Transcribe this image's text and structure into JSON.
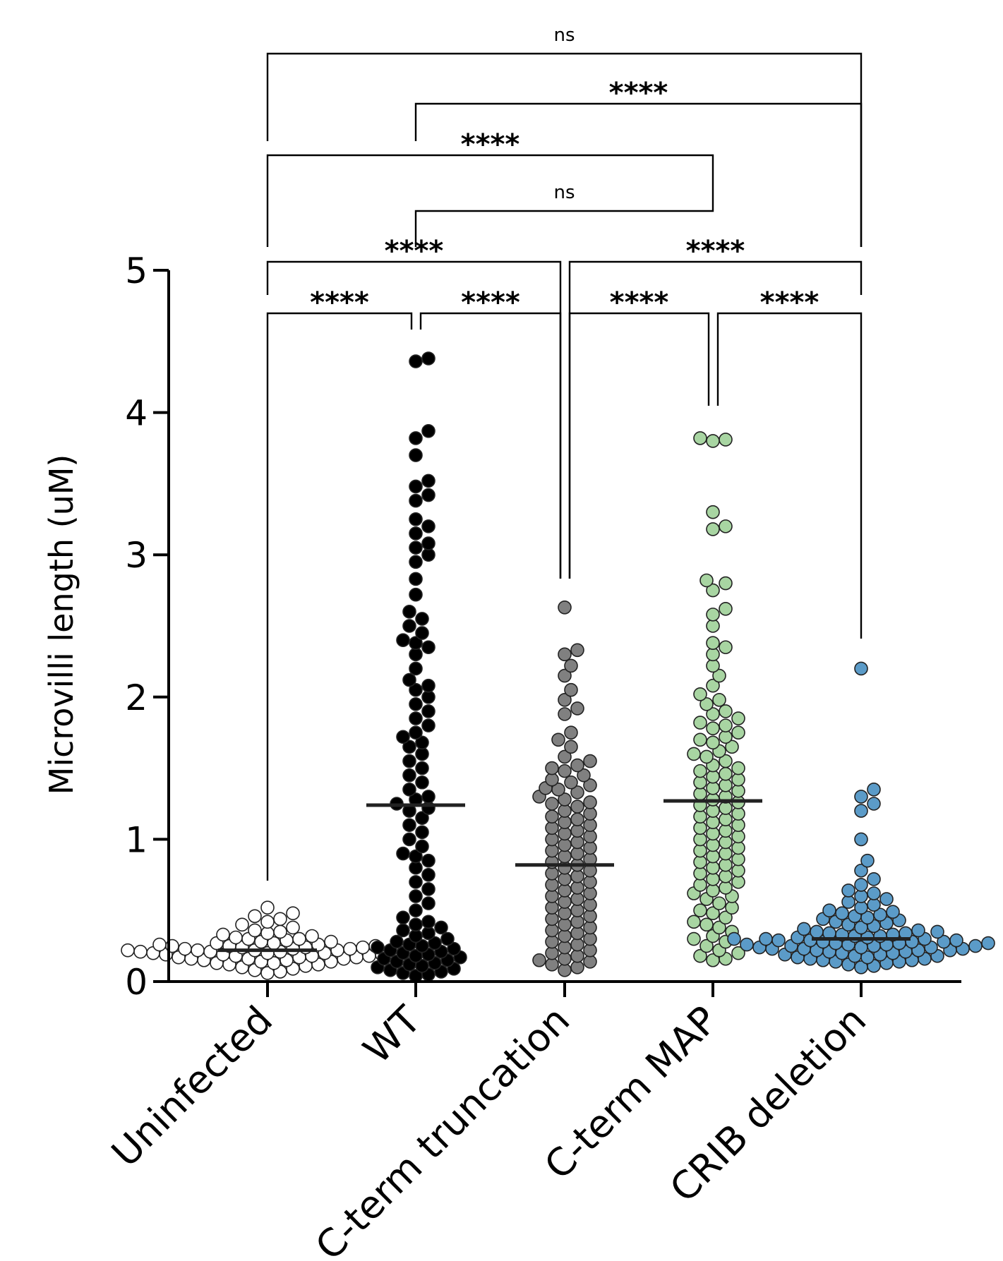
{
  "chart_data": {
    "type": "scatter",
    "subtype": "dot-plot-with-median",
    "title": "",
    "xlabel": "",
    "ylabel": "Microvilli length (uM)",
    "ylim": [
      0,
      5
    ],
    "yticks": [
      0,
      1,
      2,
      3,
      4,
      5
    ],
    "grid": false,
    "legend": "none",
    "categories": [
      "Uninfected",
      "WT",
      "C-term truncation",
      "C-term MAP",
      "CRIB deletion"
    ],
    "series": [
      {
        "category": "Uninfected",
        "color": "#ffffff",
        "median": 0.22,
        "values": [
          0.52,
          0.48,
          0.46,
          0.44,
          0.42,
          0.4,
          0.38,
          0.36,
          0.35,
          0.34,
          0.33,
          0.32,
          0.31,
          0.3,
          0.3,
          0.29,
          0.28,
          0.28,
          0.27,
          0.27,
          0.26,
          0.26,
          0.25,
          0.25,
          0.25,
          0.24,
          0.24,
          0.24,
          0.23,
          0.23,
          0.23,
          0.22,
          0.22,
          0.22,
          0.22,
          0.21,
          0.21,
          0.21,
          0.21,
          0.2,
          0.2,
          0.2,
          0.2,
          0.19,
          0.19,
          0.19,
          0.18,
          0.18,
          0.18,
          0.17,
          0.17,
          0.17,
          0.16,
          0.16,
          0.16,
          0.15,
          0.15,
          0.14,
          0.14,
          0.13,
          0.13,
          0.12,
          0.12,
          0.11,
          0.1,
          0.09,
          0.08,
          0.07,
          0.06
        ]
      },
      {
        "category": "WT",
        "color": "#000000",
        "median": 1.24,
        "values": [
          4.38,
          4.36,
          3.87,
          3.82,
          3.7,
          3.52,
          3.48,
          3.42,
          3.38,
          3.25,
          3.2,
          3.15,
          3.08,
          3.05,
          3.0,
          2.95,
          2.83,
          2.72,
          2.6,
          2.55,
          2.5,
          2.45,
          2.4,
          2.38,
          2.35,
          2.3,
          2.2,
          2.12,
          2.08,
          2.05,
          2.0,
          1.95,
          1.9,
          1.85,
          1.8,
          1.75,
          1.72,
          1.68,
          1.65,
          1.6,
          1.55,
          1.5,
          1.45,
          1.4,
          1.35,
          1.3,
          1.28,
          1.25,
          1.22,
          1.2,
          1.15,
          1.1,
          1.05,
          1.0,
          0.95,
          0.9,
          0.88,
          0.85,
          0.8,
          0.75,
          0.7,
          0.65,
          0.6,
          0.55,
          0.5,
          0.45,
          0.42,
          0.4,
          0.38,
          0.36,
          0.34,
          0.32,
          0.3,
          0.28,
          0.27,
          0.26,
          0.25,
          0.24,
          0.23,
          0.22,
          0.21,
          0.2,
          0.19,
          0.18,
          0.17,
          0.16,
          0.15,
          0.14,
          0.13,
          0.12,
          0.11,
          0.1,
          0.09,
          0.08,
          0.07,
          0.06,
          0.05,
          0.04
        ]
      },
      {
        "category": "C-term truncation",
        "color": "#808080",
        "median": 0.82,
        "values": [
          2.63,
          2.33,
          2.3,
          2.22,
          2.15,
          2.05,
          1.98,
          1.92,
          1.88,
          1.75,
          1.7,
          1.65,
          1.58,
          1.55,
          1.52,
          1.5,
          1.48,
          1.45,
          1.42,
          1.4,
          1.38,
          1.36,
          1.35,
          1.33,
          1.3,
          1.28,
          1.26,
          1.25,
          1.23,
          1.2,
          1.18,
          1.16,
          1.14,
          1.12,
          1.1,
          1.08,
          1.06,
          1.04,
          1.02,
          1.0,
          0.98,
          0.96,
          0.94,
          0.92,
          0.9,
          0.88,
          0.86,
          0.84,
          0.82,
          0.8,
          0.78,
          0.76,
          0.74,
          0.72,
          0.7,
          0.68,
          0.66,
          0.64,
          0.62,
          0.6,
          0.58,
          0.56,
          0.54,
          0.52,
          0.5,
          0.48,
          0.46,
          0.44,
          0.42,
          0.4,
          0.38,
          0.36,
          0.34,
          0.32,
          0.3,
          0.28,
          0.26,
          0.24,
          0.22,
          0.2,
          0.18,
          0.16,
          0.15,
          0.14,
          0.12,
          0.1,
          0.08
        ]
      },
      {
        "category": "C-term MAP",
        "color": "#a8d5a2",
        "median": 1.27,
        "values": [
          3.82,
          3.81,
          3.8,
          3.3,
          3.2,
          3.18,
          2.82,
          2.8,
          2.75,
          2.62,
          2.58,
          2.5,
          2.38,
          2.35,
          2.3,
          2.22,
          2.15,
          2.08,
          2.02,
          1.98,
          1.95,
          1.9,
          1.88,
          1.85,
          1.82,
          1.8,
          1.78,
          1.75,
          1.72,
          1.7,
          1.68,
          1.65,
          1.62,
          1.6,
          1.58,
          1.55,
          1.52,
          1.5,
          1.48,
          1.46,
          1.44,
          1.42,
          1.4,
          1.38,
          1.36,
          1.34,
          1.32,
          1.3,
          1.28,
          1.26,
          1.24,
          1.22,
          1.2,
          1.18,
          1.16,
          1.14,
          1.12,
          1.1,
          1.08,
          1.06,
          1.04,
          1.02,
          1.0,
          0.98,
          0.96,
          0.94,
          0.92,
          0.9,
          0.88,
          0.86,
          0.84,
          0.82,
          0.8,
          0.78,
          0.76,
          0.74,
          0.72,
          0.7,
          0.68,
          0.66,
          0.64,
          0.62,
          0.6,
          0.58,
          0.55,
          0.52,
          0.5,
          0.48,
          0.45,
          0.42,
          0.4,
          0.38,
          0.35,
          0.32,
          0.3,
          0.28,
          0.25,
          0.22,
          0.2,
          0.18,
          0.16,
          0.15
        ]
      },
      {
        "category": "CRIB deletion",
        "color": "#5b9bc8",
        "median": 0.3,
        "values": [
          2.2,
          1.35,
          1.3,
          1.25,
          1.2,
          1.0,
          0.85,
          0.78,
          0.72,
          0.68,
          0.64,
          0.62,
          0.6,
          0.58,
          0.56,
          0.54,
          0.52,
          0.5,
          0.49,
          0.48,
          0.47,
          0.46,
          0.45,
          0.44,
          0.43,
          0.42,
          0.41,
          0.4,
          0.39,
          0.38,
          0.37,
          0.36,
          0.35,
          0.35,
          0.34,
          0.34,
          0.33,
          0.33,
          0.32,
          0.32,
          0.31,
          0.31,
          0.3,
          0.3,
          0.3,
          0.29,
          0.29,
          0.29,
          0.28,
          0.28,
          0.28,
          0.27,
          0.27,
          0.27,
          0.26,
          0.26,
          0.26,
          0.25,
          0.25,
          0.25,
          0.24,
          0.24,
          0.24,
          0.23,
          0.23,
          0.23,
          0.22,
          0.22,
          0.22,
          0.21,
          0.21,
          0.2,
          0.2,
          0.19,
          0.19,
          0.18,
          0.18,
          0.17,
          0.17,
          0.16,
          0.16,
          0.15,
          0.15,
          0.14,
          0.14,
          0.13,
          0.12,
          0.11,
          0.1
        ]
      }
    ],
    "comparisons": [
      {
        "from": 0,
        "to": 1,
        "label": "****"
      },
      {
        "from": 1,
        "to": 2,
        "label": "****"
      },
      {
        "from": 2,
        "to": 3,
        "label": "****"
      },
      {
        "from": 3,
        "to": 4,
        "label": "****"
      },
      {
        "from": 0,
        "to": 2,
        "label": "****"
      },
      {
        "from": 2,
        "to": 4,
        "label": "****"
      },
      {
        "from": 1,
        "to": 3,
        "label": "ns"
      },
      {
        "from": 0,
        "to": 3,
        "label": "****"
      },
      {
        "from": 1,
        "to": 4,
        "label": "****"
      },
      {
        "from": 0,
        "to": 4,
        "label": "ns"
      }
    ]
  }
}
